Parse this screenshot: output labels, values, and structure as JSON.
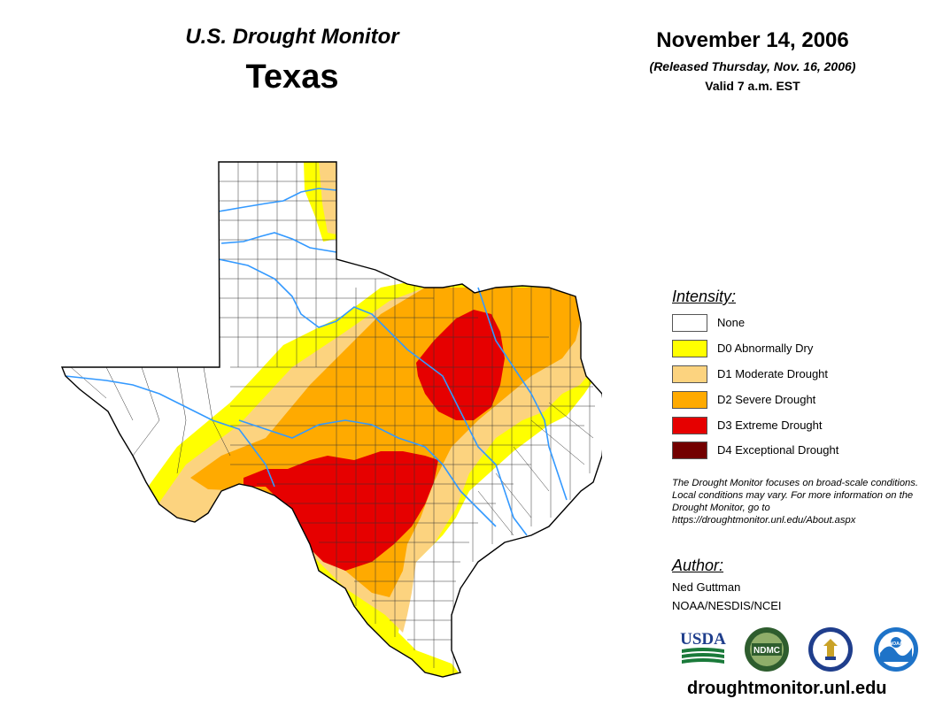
{
  "header": {
    "subtitle": "U.S. Drought Monitor",
    "region": "Texas",
    "date": "November 14, 2006",
    "released": "(Released Thursday, Nov. 16, 2006)",
    "valid": "Valid 7 a.m. EST"
  },
  "legend": {
    "title": "Intensity:",
    "items": [
      {
        "label": "None",
        "color": "#ffffff"
      },
      {
        "label": "D0 Abnormally Dry",
        "color": "#ffff00"
      },
      {
        "label": "D1 Moderate Drought",
        "color": "#fcd37f"
      },
      {
        "label": "D2 Severe Drought",
        "color": "#ffaa00"
      },
      {
        "label": "D3 Extreme Drought",
        "color": "#e60000"
      },
      {
        "label": "D4 Exceptional Drought",
        "color": "#730000"
      }
    ]
  },
  "note": "The Drought Monitor focuses on broad-scale conditions. Local conditions may vary. For more information on the Drought Monitor, go to https://droughtmonitor.unl.edu/About.aspx",
  "author": {
    "title": "Author:",
    "name": "Ned Guttman",
    "org": "NOAA/NESDIS/NCEI"
  },
  "logos": {
    "usda": "USDA",
    "ndmc": "NDMC",
    "noaa": "NOAA"
  },
  "website": "droughtmonitor.unl.edu",
  "colors": {
    "river": "#3399ff",
    "border": "#000000",
    "county": "#333333"
  }
}
